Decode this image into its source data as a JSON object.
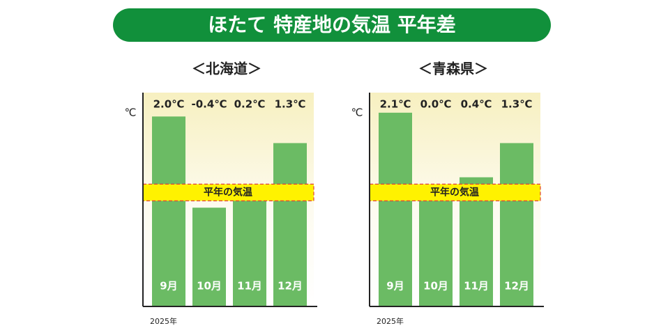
{
  "title": "ほたて 特産地の気温 平年差",
  "chart_data": [
    {
      "type": "bar",
      "title": "＜北海道＞",
      "y_label": "℃",
      "x_label": "2025年",
      "categories": [
        "9月",
        "10月",
        "11月",
        "12月"
      ],
      "values": [
        2.0,
        -0.4,
        0.2,
        1.3
      ],
      "value_labels": [
        "2.0℃",
        "-0.4℃",
        "0.2℃",
        "1.3℃"
      ],
      "color": "#6bbb64",
      "ylim": [
        -3,
        2.5
      ],
      "reference": {
        "value": 0,
        "label": "平年の気温"
      }
    },
    {
      "type": "bar",
      "title": "＜青森県＞",
      "y_label": "℃",
      "x_label": "2025年",
      "categories": [
        "9月",
        "10月",
        "11月",
        "12月"
      ],
      "values": [
        2.1,
        0.0,
        0.4,
        1.3
      ],
      "value_labels": [
        "2.1℃",
        "0.0℃",
        "0.4℃",
        "1.3℃"
      ],
      "color": "#6bbb64",
      "ylim": [
        -3,
        2.5
      ],
      "reference": {
        "value": 0,
        "label": "平年の気温"
      }
    }
  ]
}
